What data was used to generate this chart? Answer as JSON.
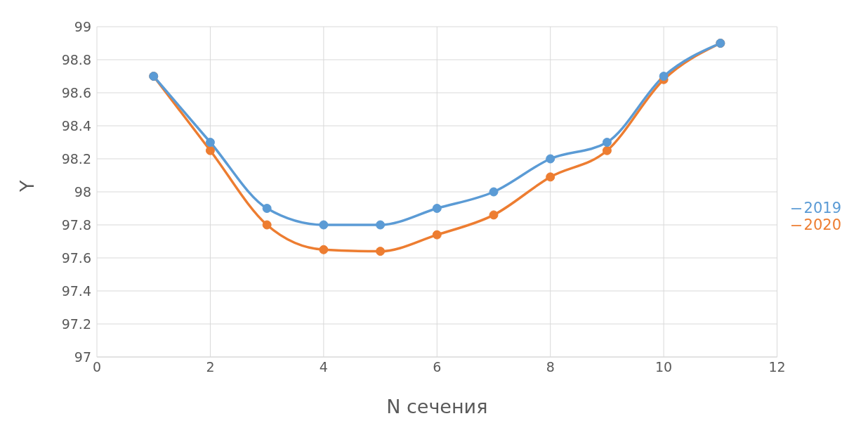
{
  "chart_data": {
    "type": "line",
    "xlabel": "N сечения",
    "ylabel": "Y",
    "x": [
      1,
      2,
      3,
      4,
      5,
      6,
      7,
      8,
      9,
      10,
      11
    ],
    "series": [
      {
        "name": "2019",
        "color": "#5b9bd5",
        "values": [
          98.7,
          98.3,
          97.9,
          97.8,
          97.8,
          97.9,
          98.0,
          98.2,
          98.3,
          98.7,
          98.9
        ]
      },
      {
        "name": "2020",
        "color": "#ed7d31",
        "values": [
          98.7,
          98.25,
          97.8,
          97.65,
          97.64,
          97.74,
          97.86,
          98.09,
          98.25,
          98.68,
          98.9
        ]
      }
    ],
    "xlim": [
      0,
      12
    ],
    "xticks": [
      0,
      2,
      4,
      6,
      8,
      10,
      12
    ],
    "ylim": [
      97,
      99
    ],
    "yticks": [
      97,
      97.2,
      97.4,
      97.6,
      97.8,
      98,
      98.2,
      98.4,
      98.6,
      98.8,
      99
    ],
    "grid": true,
    "legend": "right",
    "marker": "circle",
    "line_style": "solid"
  }
}
